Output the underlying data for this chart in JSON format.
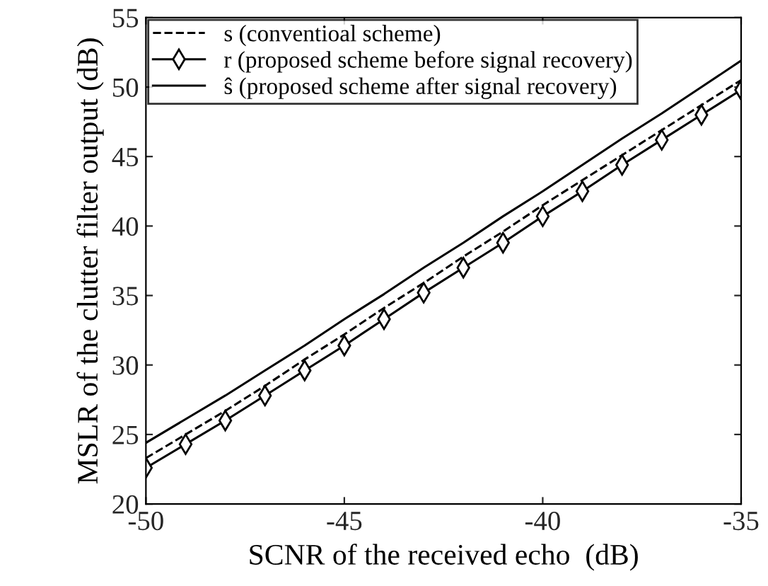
{
  "chart_data": {
    "type": "line",
    "xlabel": "SCNR of the received echo  (dB)",
    "ylabel": "MSLR of the clutter filter output (dB)",
    "x": [
      -50,
      -49,
      -48,
      -47,
      -46,
      -45,
      -44,
      -43,
      -42,
      -41,
      -40,
      -39,
      -38,
      -37,
      -36,
      -35
    ],
    "series": [
      {
        "name": "s (conventioal scheme)",
        "color": "#000000",
        "line_style": "dashed",
        "marker": "none",
        "values": [
          23.3,
          25.0,
          26.7,
          28.5,
          30.4,
          32.2,
          34.1,
          35.9,
          37.8,
          39.6,
          41.5,
          43.3,
          45.1,
          46.9,
          48.7,
          50.5
        ]
      },
      {
        "name": "r (proposed scheme before signal recovery)",
        "color": "#000000",
        "line_style": "solid",
        "marker": "diamond",
        "values": [
          22.6,
          24.3,
          26.0,
          27.8,
          29.6,
          31.4,
          33.3,
          35.2,
          37.0,
          38.8,
          40.7,
          42.5,
          44.4,
          46.2,
          48.0,
          49.8
        ]
      },
      {
        "name": "ŝ (proposed scheme after signal recovery)",
        "color": "#000000",
        "line_style": "solid",
        "marker": "none",
        "values": [
          24.4,
          26.1,
          27.8,
          29.6,
          31.4,
          33.3,
          35.1,
          37.0,
          38.8,
          40.7,
          42.5,
          44.4,
          46.3,
          48.1,
          50.0,
          51.9
        ]
      }
    ],
    "xlim": [
      -50,
      -35
    ],
    "xticks": [
      -50,
      -45,
      -40,
      -35
    ],
    "ylim": [
      20,
      55
    ],
    "yticks": [
      20,
      25,
      30,
      35,
      40,
      45,
      50,
      55
    ],
    "grid": false,
    "legend": "top left"
  }
}
